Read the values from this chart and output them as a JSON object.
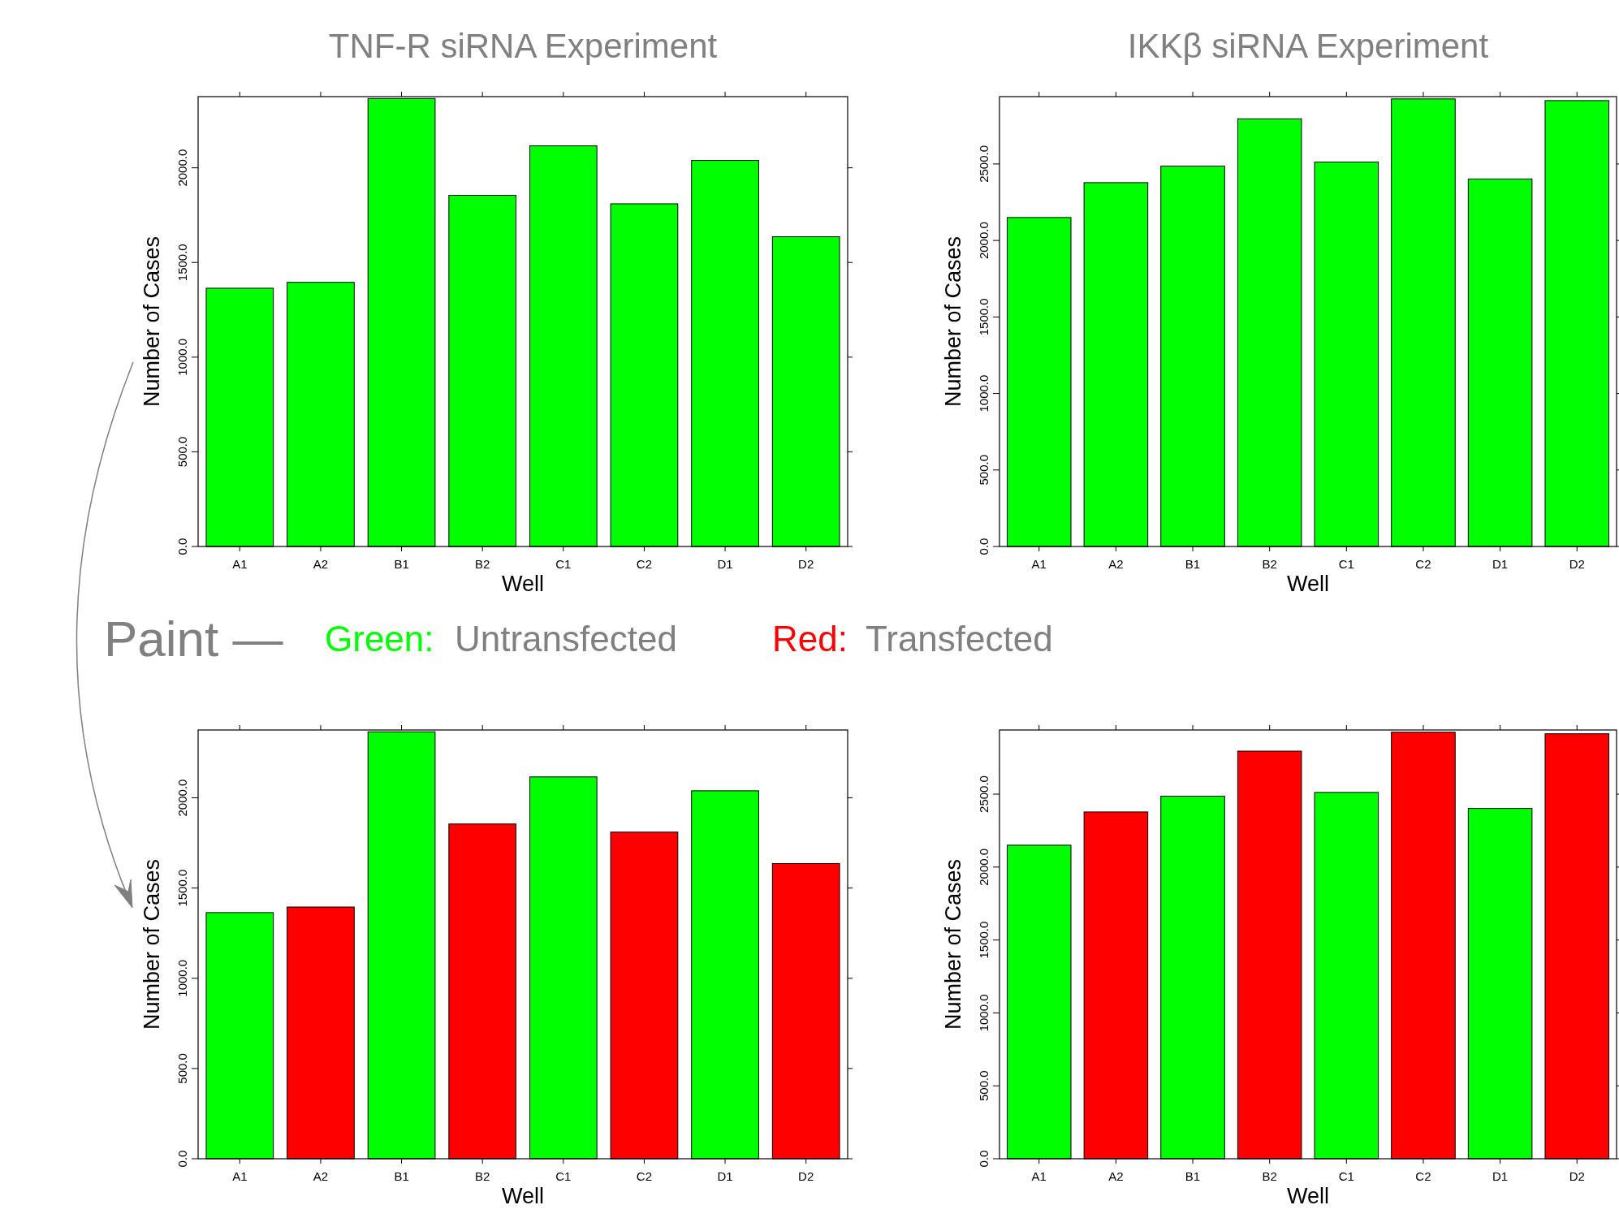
{
  "chart_data": [
    {
      "type": "bar",
      "title": "TNF-R siRNA Experiment",
      "xlabel": "Well",
      "ylabel": "Number of Cases",
      "categories": [
        "A1",
        "A2",
        "B1",
        "B2",
        "C1",
        "C2",
        "D1",
        "D2"
      ],
      "values": [
        1364,
        1395,
        2366,
        1855,
        2116,
        1810,
        2039,
        1636
      ],
      "colors": [
        "#00ff00",
        "#00ff00",
        "#00ff00",
        "#00ff00",
        "#00ff00",
        "#00ff00",
        "#00ff00",
        "#00ff00"
      ],
      "ylim": [
        0,
        2376
      ],
      "yticks": [
        {
          "value": 0,
          "label": "0.0"
        },
        {
          "value": 500,
          "label": "500.0"
        },
        {
          "value": 1000,
          "label": "1000.0"
        },
        {
          "value": 1500,
          "label": "1500.0"
        },
        {
          "value": 2000,
          "label": "2000.0"
        }
      ]
    },
    {
      "type": "bar",
      "title": "IKKβ siRNA Experiment",
      "xlabel": "Well",
      "ylabel": "Number of Cases",
      "categories": [
        "A1",
        "A2",
        "B1",
        "B2",
        "C1",
        "C2",
        "D1",
        "D2"
      ],
      "values": [
        2150,
        2378,
        2486,
        2795,
        2512,
        2925,
        2402,
        2914
      ],
      "colors": [
        "#00ff00",
        "#00ff00",
        "#00ff00",
        "#00ff00",
        "#00ff00",
        "#00ff00",
        "#00ff00",
        "#00ff00"
      ],
      "ylim": [
        0,
        2940
      ],
      "yticks": [
        {
          "value": 0,
          "label": "0.0"
        },
        {
          "value": 500,
          "label": "500.0"
        },
        {
          "value": 1000,
          "label": "1000.0"
        },
        {
          "value": 1500,
          "label": "1500.0"
        },
        {
          "value": 2000,
          "label": "2000.0"
        },
        {
          "value": 2500,
          "label": "2500.0"
        }
      ]
    },
    {
      "type": "bar",
      "xlabel": "Well",
      "ylabel": "Number of Cases",
      "annotations": [
        "Paint —",
        "Green:",
        "Untransfected",
        "Red:",
        "Transfected"
      ],
      "categories": [
        "A1",
        "A2",
        "B1",
        "B2",
        "C1",
        "C2",
        "D1",
        "D2"
      ],
      "values": [
        1364,
        1395,
        2366,
        1855,
        2116,
        1810,
        2039,
        1636
      ],
      "colors": [
        "#00ff00",
        "#ff0000",
        "#00ff00",
        "#ff0000",
        "#00ff00",
        "#ff0000",
        "#00ff00",
        "#ff0000"
      ],
      "ylim": [
        0,
        2376
      ],
      "yticks": [
        {
          "value": 0,
          "label": "0.0"
        },
        {
          "value": 500,
          "label": "500.0"
        },
        {
          "value": 1000,
          "label": "1000.0"
        },
        {
          "value": 1500,
          "label": "1500.0"
        },
        {
          "value": 2000,
          "label": "2000.0"
        }
      ]
    },
    {
      "type": "bar",
      "xlabel": "Well",
      "ylabel": "Number of Cases",
      "categories": [
        "A1",
        "A2",
        "B1",
        "B2",
        "C1",
        "C2",
        "D1",
        "D2"
      ],
      "values": [
        2150,
        2378,
        2486,
        2795,
        2512,
        2925,
        2402,
        2914
      ],
      "colors": [
        "#00ff00",
        "#ff0000",
        "#00ff00",
        "#ff0000",
        "#00ff00",
        "#ff0000",
        "#00ff00",
        "#ff0000"
      ],
      "ylim": [
        0,
        2940
      ],
      "yticks": [
        {
          "value": 0,
          "label": "0.0"
        },
        {
          "value": 500,
          "label": "500.0"
        },
        {
          "value": 1000,
          "label": "1000.0"
        },
        {
          "value": 1500,
          "label": "1500.0"
        },
        {
          "value": 2000,
          "label": "2000.0"
        },
        {
          "value": 2500,
          "label": "2500.0"
        }
      ]
    }
  ]
}
